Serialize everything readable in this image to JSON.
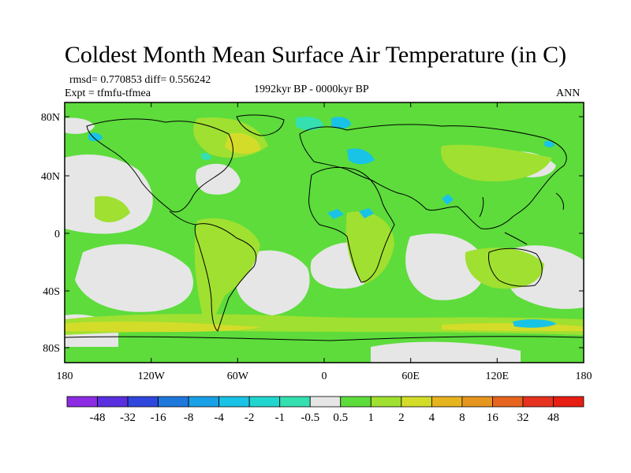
{
  "title": "Coldest Month Mean Surface Air Temperature (in C)",
  "stats": {
    "rmsd_diff": "rmsd= 0.770853 diff= 0.556242",
    "expt": "Expt = tfmfu-tfmea",
    "period": "1992kyr BP - 0000kyr BP",
    "season": "ANN"
  },
  "axes": {
    "lat_ticks": [
      "80N",
      "40N",
      "0",
      "40S",
      "80S"
    ],
    "lon_ticks": [
      "180",
      "120W",
      "60W",
      "0",
      "60E",
      "120E",
      "180"
    ]
  },
  "legend": {
    "labels": [
      "-48",
      "-32",
      "-16",
      "-8",
      "-4",
      "-2",
      "-1",
      "-0.5",
      "0.5",
      "1",
      "2",
      "4",
      "8",
      "16",
      "32",
      "48"
    ],
    "colors": [
      "#8c2be2",
      "#5a2fe0",
      "#2f47dc",
      "#1f78dc",
      "#1aa0e6",
      "#19c3e6",
      "#21d6cf",
      "#34e0b0",
      "#e6e6e6",
      "#5ddc3c",
      "#a0e030",
      "#d4dc2a",
      "#e6b41e",
      "#e6961e",
      "#e6641e",
      "#e6321e",
      "#e61e14"
    ]
  },
  "field_colors": {
    "near_zero": "#e6e6e6",
    "slight_warm": "#5ddc3c",
    "warm": "#a0e030",
    "warmer": "#d4dc2a",
    "slight_cool": "#34e0b0",
    "cool": "#19c3e6"
  }
}
